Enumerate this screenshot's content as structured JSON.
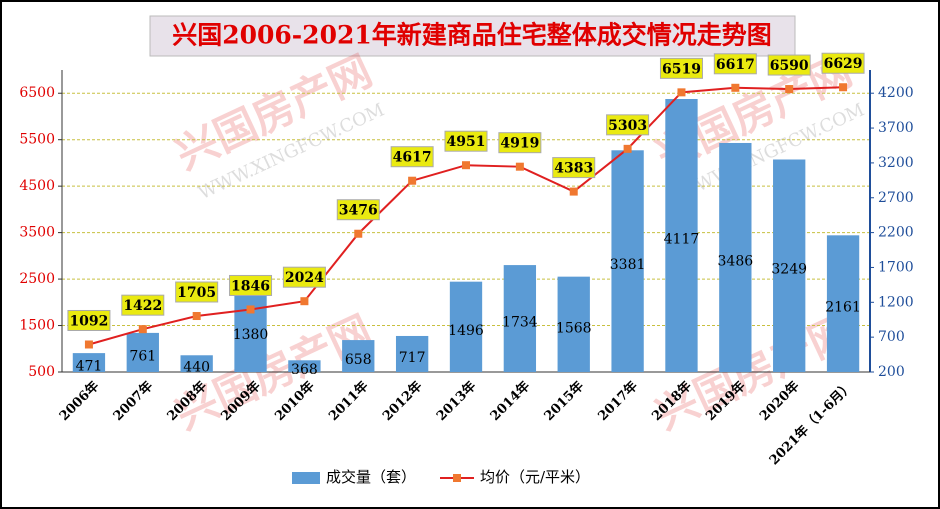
{
  "chart_data": {
    "type": "bar-line",
    "title": "兴国2006-2021年新建商品住宅整体成交情况走势图",
    "watermark": [
      "兴国房产网",
      "WWW.XINGFCW.COM"
    ],
    "categories": [
      "2006年",
      "2007年",
      "2008年",
      "2009年",
      "2010年",
      "2011年",
      "2012年",
      "2013年",
      "2014年",
      "2015年",
      "2017年",
      "2018年",
      "2019年",
      "2020年",
      "2021年（1-6月）"
    ],
    "series": [
      {
        "name": "成交量（套）",
        "type": "bar",
        "axis": "y2",
        "color": "#5b9bd5",
        "values": [
          471,
          761,
          440,
          1380,
          368,
          658,
          717,
          1496,
          1734,
          1568,
          3381,
          4117,
          3486,
          3249,
          2161
        ]
      },
      {
        "name": "均价（元/平米）",
        "type": "line",
        "axis": "y",
        "color": "#e02020",
        "marker_color": "#f07830",
        "values": [
          1092,
          1422,
          1705,
          1846,
          2024,
          3476,
          4617,
          4951,
          4919,
          4383,
          5303,
          6519,
          6617,
          6590,
          6629
        ]
      }
    ],
    "ylim": [
      500,
      7000
    ],
    "yticks": [
      500,
      1500,
      2500,
      3500,
      4500,
      5500,
      6500
    ],
    "y2lim": [
      200,
      4533
    ],
    "y2ticks": [
      200,
      700,
      1200,
      1700,
      2200,
      2700,
      3200,
      3700,
      4200
    ],
    "grid": true,
    "legend": "bottom"
  }
}
